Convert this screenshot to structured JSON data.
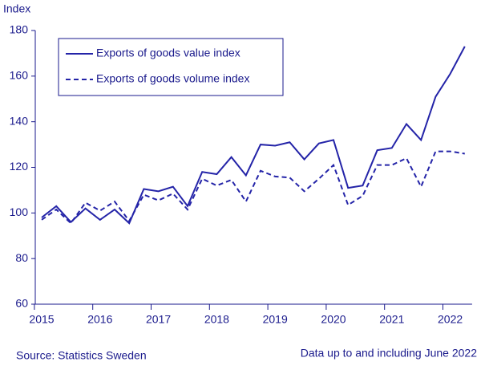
{
  "chart_data": {
    "type": "line",
    "y_label": "Index",
    "categories": [
      "2015",
      null,
      null,
      null,
      "2016",
      null,
      null,
      null,
      "2017",
      null,
      null,
      null,
      "2018",
      null,
      null,
      null,
      "2019",
      null,
      null,
      null,
      "2020",
      null,
      null,
      null,
      "2021",
      null,
      null,
      null,
      "2022",
      null
    ],
    "series": [
      {
        "name": "Exports of goods value index",
        "color": "#2424a8",
        "dash": "solid",
        "values": [
          98,
          103,
          96,
          102,
          97,
          101.5,
          95.5,
          110.5,
          109.5,
          111.5,
          103,
          118,
          117,
          124.5,
          116.5,
          130,
          129.5,
          131,
          123.5,
          130.5,
          132,
          111,
          112,
          127.5,
          128.5,
          139,
          132,
          151,
          161,
          173
        ]
      },
      {
        "name": "Exports of goods volume index",
        "color": "#2424a8",
        "dash": "dashed",
        "values": [
          97,
          101.5,
          95.5,
          104.5,
          101,
          105,
          96.5,
          108,
          105.5,
          108.5,
          101.5,
          115,
          112,
          114.5,
          105,
          118.5,
          116,
          115.5,
          109.5,
          115,
          121,
          103.5,
          107.5,
          121,
          121,
          124,
          111.5,
          127,
          127,
          126
        ]
      }
    ],
    "ylim": [
      60,
      180
    ],
    "yticks": [
      60,
      80,
      100,
      120,
      140,
      160,
      180
    ],
    "legend": "upper left",
    "source": "Source: Statistics Sweden",
    "note": "Data up to and including June 2022"
  }
}
